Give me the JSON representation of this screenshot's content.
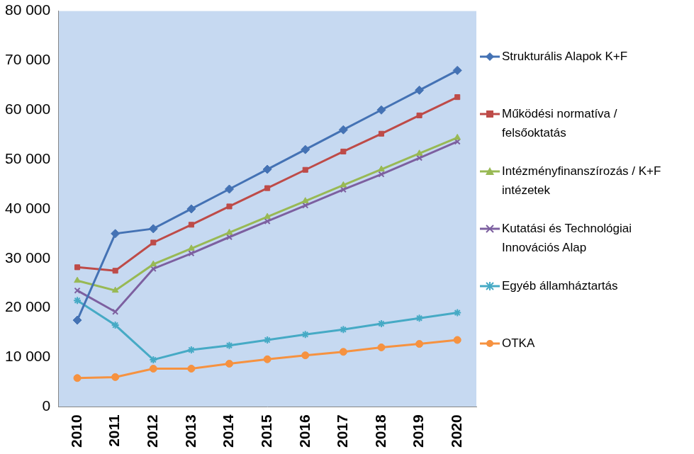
{
  "chart_data": {
    "type": "line",
    "categories": [
      "2010",
      "2011",
      "2012",
      "2013",
      "2014",
      "2015",
      "2016",
      "2017",
      "2018",
      "2019",
      "2020"
    ],
    "series": [
      {
        "name": "Strukturális Alapok K+F",
        "color": "#4472b4",
        "marker": "diamond",
        "values": [
          17500,
          35000,
          36000,
          40000,
          44000,
          48000,
          52000,
          56000,
          60000,
          64000,
          68000
        ]
      },
      {
        "name": "Működési normatíva / felsőoktatás",
        "color": "#be4b48",
        "marker": "square",
        "values": [
          28200,
          27500,
          33200,
          36800,
          40500,
          44200,
          47900,
          51600,
          55200,
          58900,
          62600
        ]
      },
      {
        "name": "Intézményfinanszírozás / K+F intézetek",
        "color": "#98b954",
        "marker": "triangle",
        "values": [
          25500,
          23500,
          28800,
          32000,
          35200,
          38400,
          41600,
          44800,
          48000,
          51200,
          54400
        ]
      },
      {
        "name": "Kutatási és Technológiai Innovációs Alap",
        "color": "#7d60a0",
        "marker": "x",
        "values": [
          23500,
          19200,
          27900,
          31000,
          34300,
          37500,
          40700,
          43900,
          47000,
          50300,
          53600
        ]
      },
      {
        "name": "Egyéb államháztartás",
        "color": "#46aac5",
        "marker": "star",
        "values": [
          21500,
          16500,
          9500,
          11500,
          12400,
          13500,
          14600,
          15600,
          16800,
          17900,
          19000
        ]
      },
      {
        "name": "OTKA",
        "color": "#f69240",
        "marker": "circle",
        "values": [
          5800,
          6000,
          7700,
          7700,
          8700,
          9600,
          10400,
          11100,
          12000,
          12700,
          13500
        ]
      }
    ],
    "ylim": [
      0,
      80000
    ],
    "yticks": [
      0,
      {
        "value": 10000,
        "label": "10 000"
      },
      {
        "value": 20000,
        "label": "20 000"
      },
      {
        "value": 30000,
        "label": "30 000"
      },
      {
        "value": 40000,
        "label": "40 000"
      },
      {
        "value": 50000,
        "label": "50 000"
      },
      {
        "value": 60000,
        "label": "60 000"
      },
      {
        "value": 70000,
        "label": "70 000"
      },
      {
        "value": 80000,
        "label": "80 000"
      }
    ],
    "grid": false,
    "legend": "right"
  }
}
